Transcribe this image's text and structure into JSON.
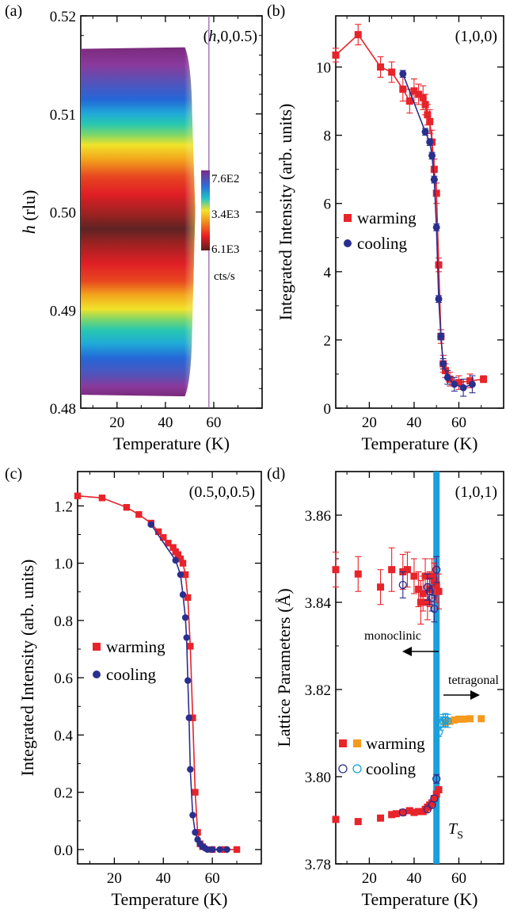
{
  "chart_data": [
    {
      "panel": "(a)",
      "type": "heatmap",
      "annotation": "(h,0,0.5)",
      "xlabel": "Temperature (K)",
      "ylabel": "h (rlu)",
      "xlim": [
        5,
        80
      ],
      "ylim": [
        0.48,
        0.52
      ],
      "xticks": [
        "20",
        "40",
        "60"
      ],
      "yticks": [
        "0.48",
        "0.49",
        "0.50",
        "0.51",
        "0.52"
      ],
      "data_extent": {
        "h": [
          0.4812,
          0.5168
        ],
        "T": [
          5,
          52
        ]
      },
      "peak_center_h": 0.5,
      "marker_line_T": 58,
      "colorbar": {
        "labels": [
          "7.6E2",
          "3.4E3",
          "6.1E3"
        ],
        "unit": "cts/s",
        "stops": [
          "#7b2a8a",
          "#2f6fd6",
          "#1fc3c8",
          "#f4e22a",
          "#f08a1a",
          "#ea1d24",
          "#5a1d1d"
        ]
      }
    },
    {
      "panel": "(b)",
      "type": "line",
      "annotation": "(1,0,0)",
      "xlabel": "Temperature (K)",
      "ylabel": "Integrated Intensity (arb. units)",
      "xlim": [
        5,
        80
      ],
      "ylim": [
        0,
        11.5
      ],
      "xticks": [
        "20",
        "40",
        "60"
      ],
      "yticks": [
        "0",
        "2",
        "4",
        "6",
        "8",
        "10"
      ],
      "legend": [
        "warming",
        "cooling"
      ],
      "series": [
        {
          "name": "warming",
          "color": "#e8232a",
          "marker": "square",
          "x": [
            5,
            15,
            25,
            30,
            35,
            38,
            40,
            42,
            44,
            45,
            46,
            47,
            48,
            49,
            50,
            51,
            52,
            53,
            54,
            56,
            60,
            65,
            71
          ],
          "y": [
            10.35,
            10.95,
            10.0,
            9.85,
            9.35,
            9.0,
            9.3,
            9.2,
            9.1,
            8.9,
            8.6,
            8.4,
            7.8,
            7.0,
            6.3,
            4.2,
            2.1,
            1.3,
            1.1,
            0.85,
            0.75,
            0.8,
            0.85
          ],
          "yerr": [
            0.2,
            0.3,
            0.3,
            0.3,
            0.35,
            0.35,
            0.35,
            0.3,
            0.35,
            0.3,
            0.3,
            0.35,
            0.35,
            0.3,
            0.3,
            0.2,
            0.2,
            0.25,
            0.2,
            0.2,
            0.2,
            0.2,
            0.1
          ]
        },
        {
          "name": "cooling",
          "color": "#2a2f8e",
          "marker": "circle",
          "x": [
            35,
            45,
            47,
            48,
            49,
            50,
            51,
            52,
            53,
            55,
            58,
            62,
            66
          ],
          "y": [
            9.8,
            8.1,
            7.8,
            7.4,
            6.7,
            5.3,
            3.2,
            2.1,
            1.3,
            0.9,
            0.7,
            0.6,
            0.7
          ],
          "yerr": [
            0.1,
            0.1,
            0.1,
            0.1,
            0.1,
            0.1,
            0.1,
            0.1,
            0.15,
            0.2,
            0.2,
            0.25,
            0.25
          ]
        }
      ]
    },
    {
      "panel": "(c)",
      "type": "line",
      "annotation": "(0.5,0,0.5)",
      "xlabel": "Temperature (K)",
      "ylabel": "Integrated Intensity (arb. units)",
      "xlim": [
        5,
        80
      ],
      "ylim": [
        -0.05,
        1.32
      ],
      "xticks": [
        "20",
        "40",
        "60"
      ],
      "yticks": [
        "0.0",
        "0.2",
        "0.4",
        "0.6",
        "0.8",
        "1.0",
        "1.2"
      ],
      "legend": [
        "warming",
        "cooling"
      ],
      "series": [
        {
          "name": "warming",
          "color": "#e8232a",
          "marker": "square",
          "x": [
            5,
            15,
            25,
            30,
            35,
            38,
            40,
            42,
            44,
            45,
            46,
            47,
            48,
            49,
            50,
            51,
            52,
            53,
            54,
            55,
            56,
            60,
            65,
            70
          ],
          "y": [
            1.235,
            1.228,
            1.195,
            1.17,
            1.14,
            1.11,
            1.09,
            1.07,
            1.055,
            1.04,
            1.03,
            1.015,
            1.0,
            0.96,
            0.88,
            0.71,
            0.46,
            0.2,
            0.06,
            0.02,
            0.01,
            0.0,
            0.0,
            0.0
          ]
        },
        {
          "name": "cooling",
          "color": "#2a2f8e",
          "marker": "circle",
          "x": [
            35,
            45,
            47,
            48,
            49,
            49.5,
            50,
            50.5,
            51,
            52,
            53,
            54,
            55,
            56,
            57,
            58,
            60,
            63,
            66
          ],
          "y": [
            1.135,
            1.01,
            0.96,
            0.89,
            0.81,
            0.74,
            0.59,
            0.46,
            0.28,
            0.12,
            0.06,
            0.035,
            0.02,
            0.01,
            0.005,
            0.0,
            0.0,
            0.0,
            0.0
          ]
        }
      ]
    },
    {
      "panel": "(d)",
      "type": "scatter",
      "annotation": "(1,0,1)",
      "xlabel": "Temperature (K)",
      "ylabel": "Lattice Parameters (Å)",
      "xlim": [
        5,
        80
      ],
      "ylim": [
        3.78,
        3.87
      ],
      "xticks": [
        "20",
        "40",
        "60"
      ],
      "yticks": [
        "3.78",
        "3.80",
        "3.82",
        "3.84",
        "3.86"
      ],
      "legend": [
        "warming",
        "cooling"
      ],
      "annotations": {
        "monoclinic": "monoclinic",
        "tetragonal": "tetragonal",
        "ts_main": "T",
        "ts_sub": "S"
      },
      "ts_T": 50,
      "ts_color": "#1aa0dc",
      "series": [
        {
          "name": "warming (monoclinic a)",
          "color": "#e8232a",
          "marker": "square",
          "x": [
            5,
            15,
            25,
            30,
            35,
            37,
            40,
            42,
            43,
            44,
            45,
            46,
            47,
            48,
            49,
            50,
            51
          ],
          "y": [
            3.8475,
            3.8465,
            3.8435,
            3.8475,
            3.847,
            3.8475,
            3.846,
            3.843,
            3.84,
            3.842,
            3.846,
            3.84,
            3.843,
            3.846,
            3.845,
            3.844,
            3.8425
          ],
          "yerr": [
            0.004,
            0.004,
            0.004,
            0.005,
            0.004,
            0.004,
            0.004,
            0.004,
            0.005,
            0.004,
            0.004,
            0.004,
            0.004,
            0.004,
            0.004,
            0.004,
            0.004
          ]
        },
        {
          "name": "warming (monoclinic b)",
          "color": "#e8232a",
          "marker": "square",
          "x": [
            5,
            15,
            25,
            30,
            32,
            35,
            38,
            40,
            42,
            44,
            45,
            46,
            47,
            48,
            49,
            50,
            51
          ],
          "y": [
            3.7902,
            3.7897,
            3.7905,
            3.7913,
            3.7915,
            3.7918,
            3.7922,
            3.7918,
            3.792,
            3.792,
            3.7925,
            3.793,
            3.7935,
            3.794,
            3.795,
            3.796,
            3.797
          ],
          "yerr": [
            0.0,
            0.0,
            0.0,
            0.0,
            0.0,
            0.0,
            0.0,
            0.0,
            0.0,
            0.0,
            0.0,
            0.0,
            0.0,
            0.0,
            0.0,
            0.0,
            0.0
          ]
        },
        {
          "name": "warming (tetragonal)",
          "color": "#f59a1e",
          "marker": "square",
          "x": [
            54,
            56,
            58,
            60,
            62,
            65,
            70
          ],
          "y": [
            3.8125,
            3.8127,
            3.813,
            3.8132,
            3.8132,
            3.8133,
            3.8133
          ]
        },
        {
          "name": "cooling (monoclinic)",
          "color": "#2a2f8e",
          "marker": "open-circle",
          "x": [
            35,
            46,
            47,
            48,
            49,
            50
          ],
          "y": [
            3.844,
            3.8435,
            3.8425,
            3.841,
            3.8385,
            3.8475
          ],
          "yerr": [
            0.003,
            0.003,
            0.003,
            0.003,
            0.003,
            0.003
          ]
        },
        {
          "name": "cooling (monoclinic b)",
          "color": "#2a2f8e",
          "marker": "open-circle",
          "x": [
            35,
            46,
            48,
            49,
            50
          ],
          "y": [
            3.7918,
            3.7925,
            3.7935,
            3.795,
            3.7995
          ],
          "yerr": [
            0.0,
            0.0,
            0.0,
            0.0,
            0.001
          ]
        },
        {
          "name": "cooling (tetragonal)",
          "color": "#1aa0dc",
          "marker": "open-circle",
          "x": [
            51,
            52,
            53,
            54,
            55
          ],
          "y": [
            3.8102,
            3.8122,
            3.8128,
            3.813,
            3.8128
          ],
          "yerr": [
            0.001,
            0.0015,
            0.0015,
            0.0015,
            0.0015
          ]
        }
      ]
    }
  ]
}
